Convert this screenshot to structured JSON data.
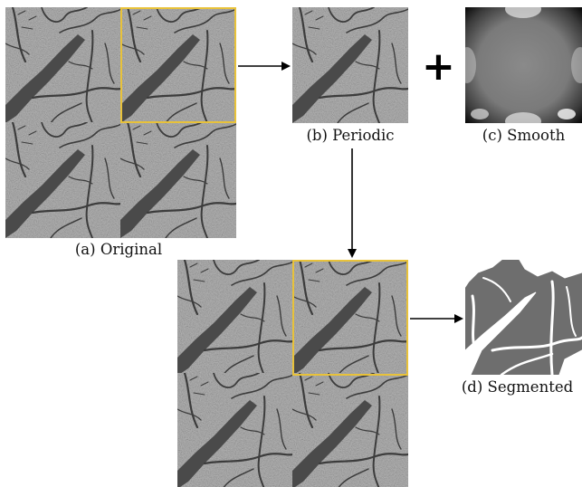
{
  "captions": {
    "original": "(a) Original",
    "periodic": "(b) Periodic",
    "smooth": "(c) Smooth",
    "segmented": "(d) Segmented"
  },
  "operator": "+",
  "colors": {
    "highlight": "#e8c23a",
    "arrow": "#000000",
    "texture_bg": "#808080",
    "segmented_bg": "#6e6e6e",
    "segmented_fg": "#ffffff"
  },
  "icons": {
    "flow_arrow": "arrow-right-icon",
    "down_arrow": "arrow-down-icon"
  }
}
